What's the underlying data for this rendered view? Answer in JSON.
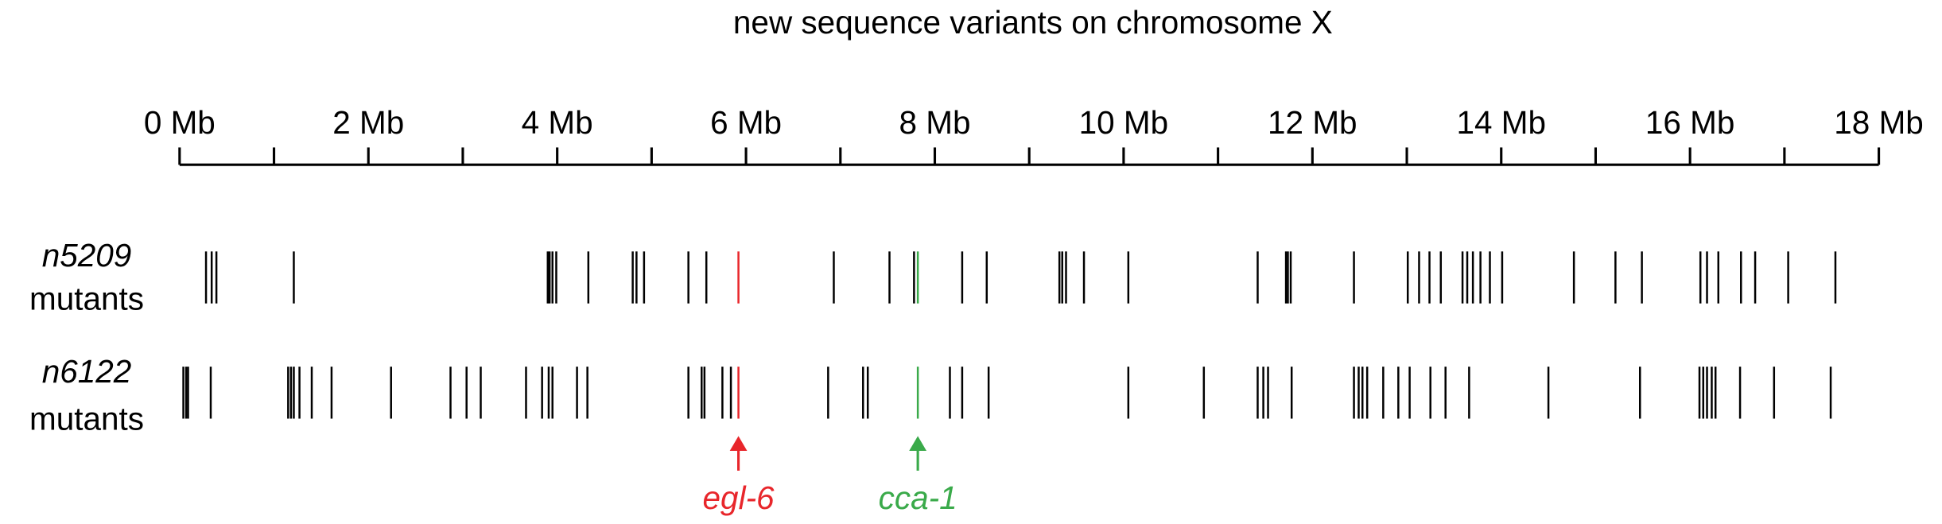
{
  "chart_data": {
    "type": "rug",
    "title": "new sequence variants on chromosome X",
    "xlim": [
      0,
      18
    ],
    "xticks": [
      {
        "value": 0,
        "label": "0 Mb"
      },
      {
        "value": 2,
        "label": "2 Mb"
      },
      {
        "value": 4,
        "label": "4 Mb"
      },
      {
        "value": 6,
        "label": "6 Mb"
      },
      {
        "value": 8,
        "label": "8 Mb"
      },
      {
        "value": 10,
        "label": "10 Mb"
      },
      {
        "value": 12,
        "label": "12 Mb"
      },
      {
        "value": 14,
        "label": "14 Mb"
      },
      {
        "value": 16,
        "label": "16 Mb"
      },
      {
        "value": 18,
        "label": "18 Mb"
      }
    ],
    "xminor_ticks": [
      1,
      3,
      5,
      7,
      9,
      11,
      13,
      15,
      17
    ],
    "color": "#000000",
    "series": [
      {
        "name": "n5209",
        "name_suffix": "mutants",
        "values": [
          0.28,
          0.34,
          0.39,
          1.21,
          3.9,
          3.92,
          3.95,
          3.99,
          4.33,
          4.8,
          4.84,
          4.92,
          5.39,
          5.58,
          5.92,
          6.93,
          7.52,
          7.78,
          7.82,
          8.29,
          8.55,
          9.32,
          9.35,
          9.39,
          9.58,
          10.05,
          11.42,
          11.72,
          11.74,
          11.77,
          12.44,
          13.01,
          13.13,
          13.24,
          13.36,
          13.59,
          13.64,
          13.7,
          13.78,
          13.88,
          14.01,
          14.77,
          15.21,
          15.49,
          16.11,
          16.18,
          16.3,
          16.54,
          16.69,
          17.04,
          17.54
        ]
      },
      {
        "name": "n6122",
        "name_suffix": "mutants",
        "values": [
          0.04,
          0.07,
          0.09,
          0.33,
          1.15,
          1.18,
          1.21,
          1.27,
          1.4,
          1.61,
          2.24,
          2.87,
          3.04,
          3.19,
          3.67,
          3.84,
          3.91,
          3.95,
          4.21,
          4.32,
          5.39,
          5.53,
          5.56,
          5.75,
          5.84,
          5.92,
          6.87,
          7.24,
          7.29,
          7.82,
          8.16,
          8.29,
          8.57,
          10.05,
          10.85,
          11.42,
          11.48,
          11.53,
          11.78,
          12.44,
          12.49,
          12.53,
          12.58,
          12.75,
          12.91,
          13.03,
          13.25,
          13.41,
          13.66,
          14.5,
          15.47,
          16.1,
          16.14,
          16.18,
          16.23,
          16.27,
          16.53,
          16.89,
          17.49
        ]
      }
    ],
    "annotations": [
      {
        "text": "egl-6",
        "x": 5.92,
        "color": "#e8262b"
      },
      {
        "text": "cca-1",
        "x": 7.82,
        "color": "#3aaa4a"
      }
    ]
  }
}
